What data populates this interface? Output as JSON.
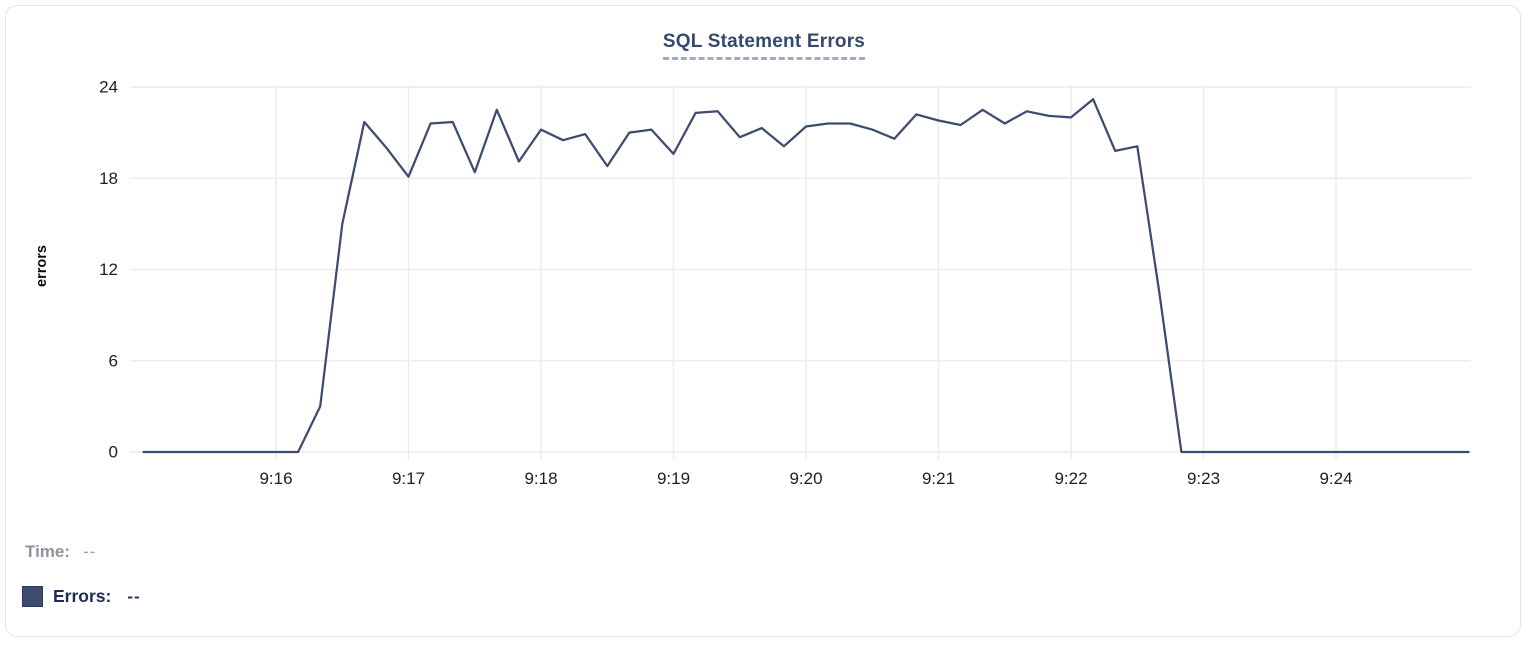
{
  "chart": {
    "title": "SQL Statement Errors"
  },
  "readout": {
    "time_label": "Time:",
    "time_value": "--",
    "errors_label": "Errors:",
    "errors_value": "--"
  },
  "colors": {
    "series_line": "#3d4c6e",
    "title_text": "#35496d",
    "title_underline": "#9fabc6",
    "time_label_text": "#8f939c",
    "time_value_text": "#9da1a9",
    "errors_label_text": "#202d52",
    "errors_value_text": "#26345a",
    "swatch_border": "#2b3a5c",
    "gridline": "#ececee",
    "tick_label": "#1d1f23",
    "axis_title": "#0c0c0c"
  },
  "chart_data": {
    "type": "line",
    "title": "SQL Statement Errors",
    "xlabel": "",
    "ylabel": "errors",
    "ylim": [
      0,
      24
    ],
    "y_ticks": [
      0,
      6,
      12,
      18,
      24
    ],
    "x_tick_labels": [
      "9:16",
      "9:17",
      "9:18",
      "9:19",
      "9:20",
      "9:21",
      "9:22",
      "9:23",
      "9:24"
    ],
    "x_range": [
      "9:15:00",
      "9:25:00"
    ],
    "grid": true,
    "legend_position": "bottom-left",
    "series": [
      {
        "name": "Errors",
        "color": "#3d4c6e",
        "start_time": "9:15:00",
        "interval_seconds": 10,
        "values": [
          0,
          0,
          0,
          0,
          0,
          0,
          0,
          0,
          3,
          15,
          21.7,
          20,
          18.1,
          21.6,
          21.7,
          18.4,
          22.5,
          19.1,
          21.2,
          20.5,
          20.9,
          18.8,
          21,
          21.2,
          19.6,
          22.3,
          22.4,
          20.7,
          21.3,
          20.1,
          21.4,
          21.6,
          21.6,
          21.2,
          20.6,
          22.2,
          21.8,
          21.5,
          22.5,
          21.6,
          22.4,
          22.1,
          22,
          23.2,
          19.8,
          20.1,
          10.5,
          0,
          0,
          0,
          0,
          0,
          0,
          0,
          0,
          0,
          0,
          0,
          0,
          0,
          0
        ]
      }
    ]
  }
}
